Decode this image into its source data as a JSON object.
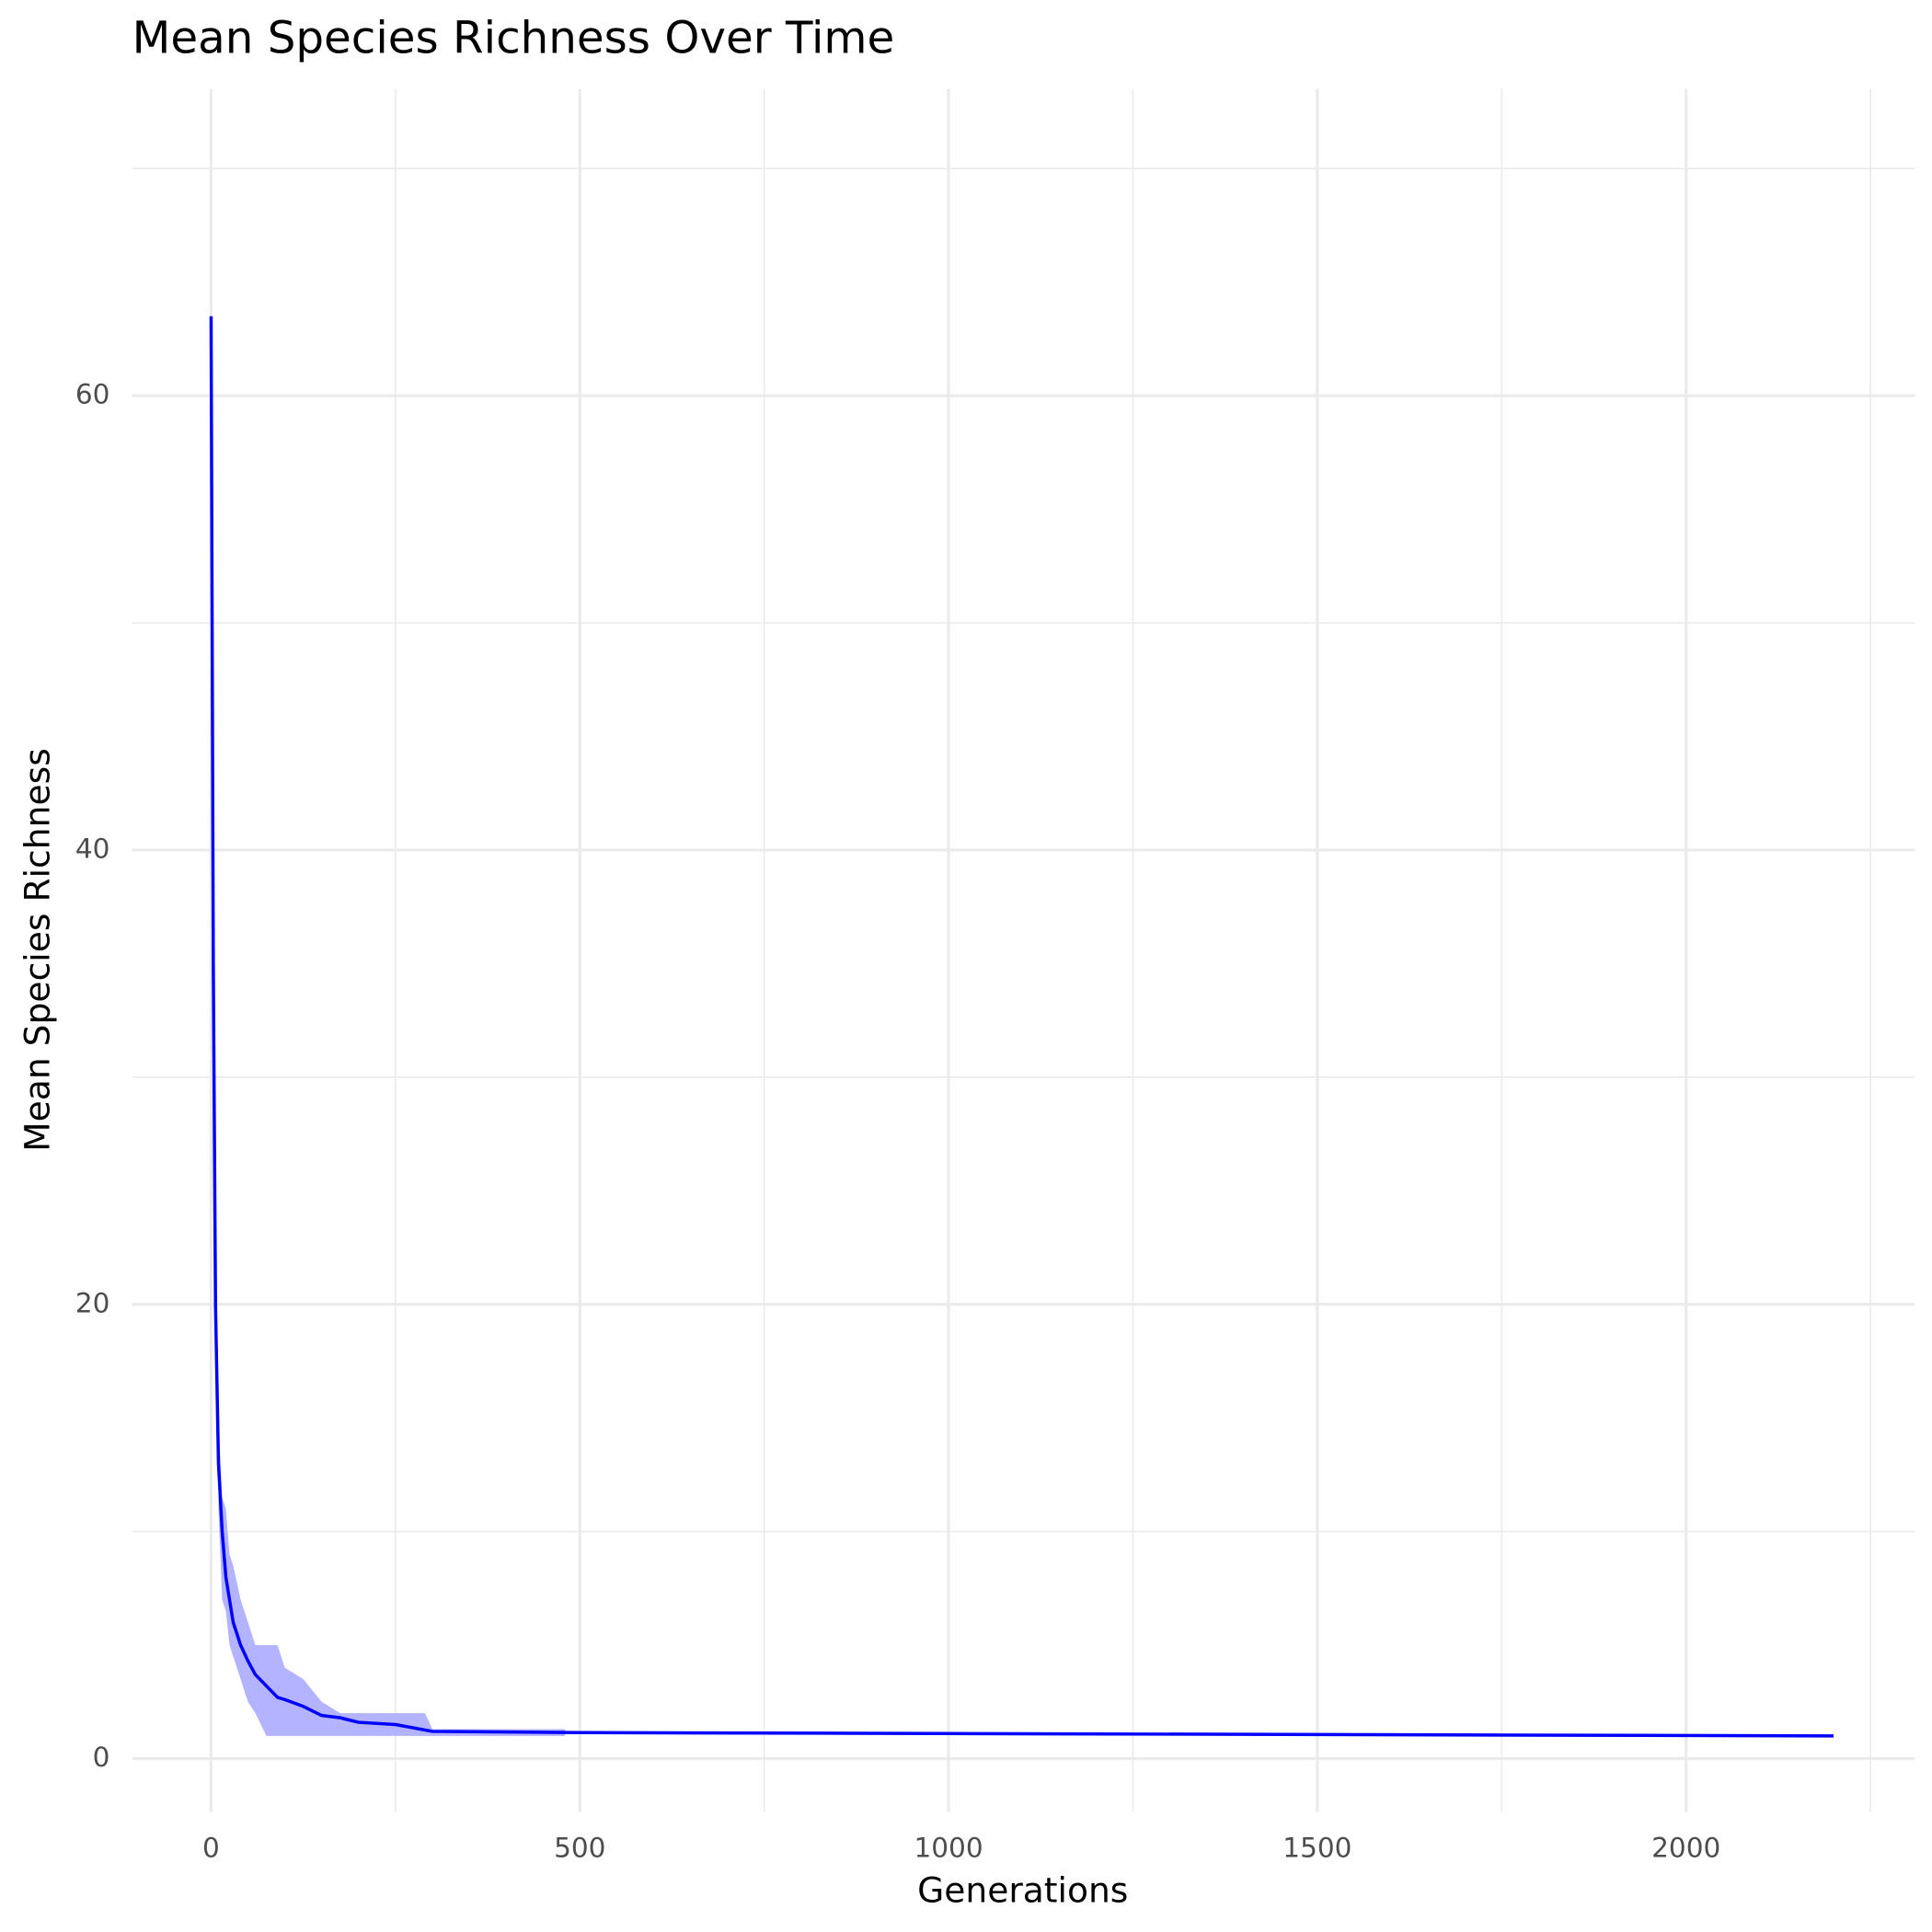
{
  "chart_data": {
    "type": "line",
    "title": "Mean Species Richness Over Time",
    "x_label": "Generations",
    "y_label": "Mean Species Richness",
    "xlim": [
      -107,
      2310
    ],
    "ylim": [
      -2.35,
      73.5
    ],
    "xticks": [
      0,
      500,
      1000,
      1500,
      2000
    ],
    "yticks": [
      0,
      20,
      40,
      60
    ],
    "x_minor_ticks": [
      250,
      750,
      1250,
      1750,
      2250
    ],
    "y_minor_ticks": [
      10,
      30,
      50,
      70
    ],
    "grid": true,
    "series": [
      {
        "color": "#0000ff",
        "x": [
          0,
          3,
          6,
          10,
          15,
          20,
          25,
          30,
          40,
          50,
          60,
          75,
          90,
          100,
          125,
          150,
          175,
          200,
          250,
          300,
          480,
          2200
        ],
        "values": [
          63.5,
          35,
          20,
          13,
          10,
          8,
          7,
          6,
          5,
          4.3,
          3.7,
          3.2,
          2.7,
          2.6,
          2.3,
          1.9,
          1.8,
          1.6,
          1.5,
          1.2,
          1.15,
          1
        ]
      }
    ],
    "ribbon": {
      "color": "#b3b3ff",
      "x": [
        10,
        15,
        20,
        25,
        30,
        40,
        50,
        60,
        75,
        90,
        100,
        125,
        150,
        175,
        200,
        250,
        290,
        300,
        480
      ],
      "lower": [
        11,
        7,
        6.5,
        5,
        4.5,
        3.5,
        2.5,
        2,
        1,
        1,
        1,
        1,
        1,
        1,
        1,
        1,
        1,
        1,
        1
      ],
      "upper": [
        15,
        11.5,
        11,
        9,
        8.5,
        7,
        6,
        5,
        5,
        5,
        4,
        3.5,
        2.5,
        2,
        2,
        2,
        2,
        1.3,
        1.3
      ]
    }
  }
}
